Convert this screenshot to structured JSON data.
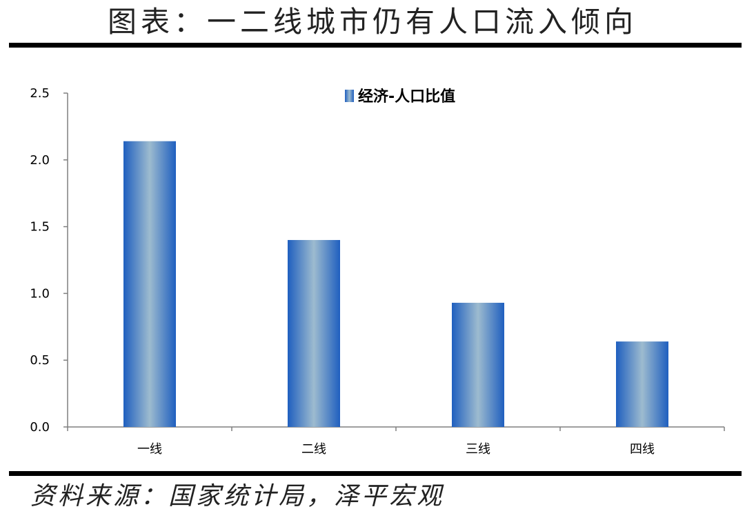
{
  "header": {
    "title": "图表：一二线城市仍有人口流入倾向"
  },
  "footer": {
    "source": "资料来源：国家统计局，泽平宏观"
  },
  "colors": {
    "bar_edge": "#1f5fbf",
    "bar_center": "#9dbbcf",
    "axis": "#7f7f7f",
    "rule": "#000000"
  },
  "chart_data": {
    "type": "bar",
    "categories": [
      "一线",
      "二线",
      "三线",
      "四线"
    ],
    "series": [
      {
        "name": "经济-人口比值",
        "values": [
          2.14,
          1.4,
          0.93,
          0.64
        ]
      }
    ],
    "title": "",
    "xlabel": "",
    "ylabel": "",
    "ylim": [
      0,
      2.5
    ],
    "yticks": [
      "0.0",
      "0.5",
      "1.0",
      "1.5",
      "2.0",
      "2.5"
    ],
    "grid": false,
    "legend_position": "top-center"
  }
}
